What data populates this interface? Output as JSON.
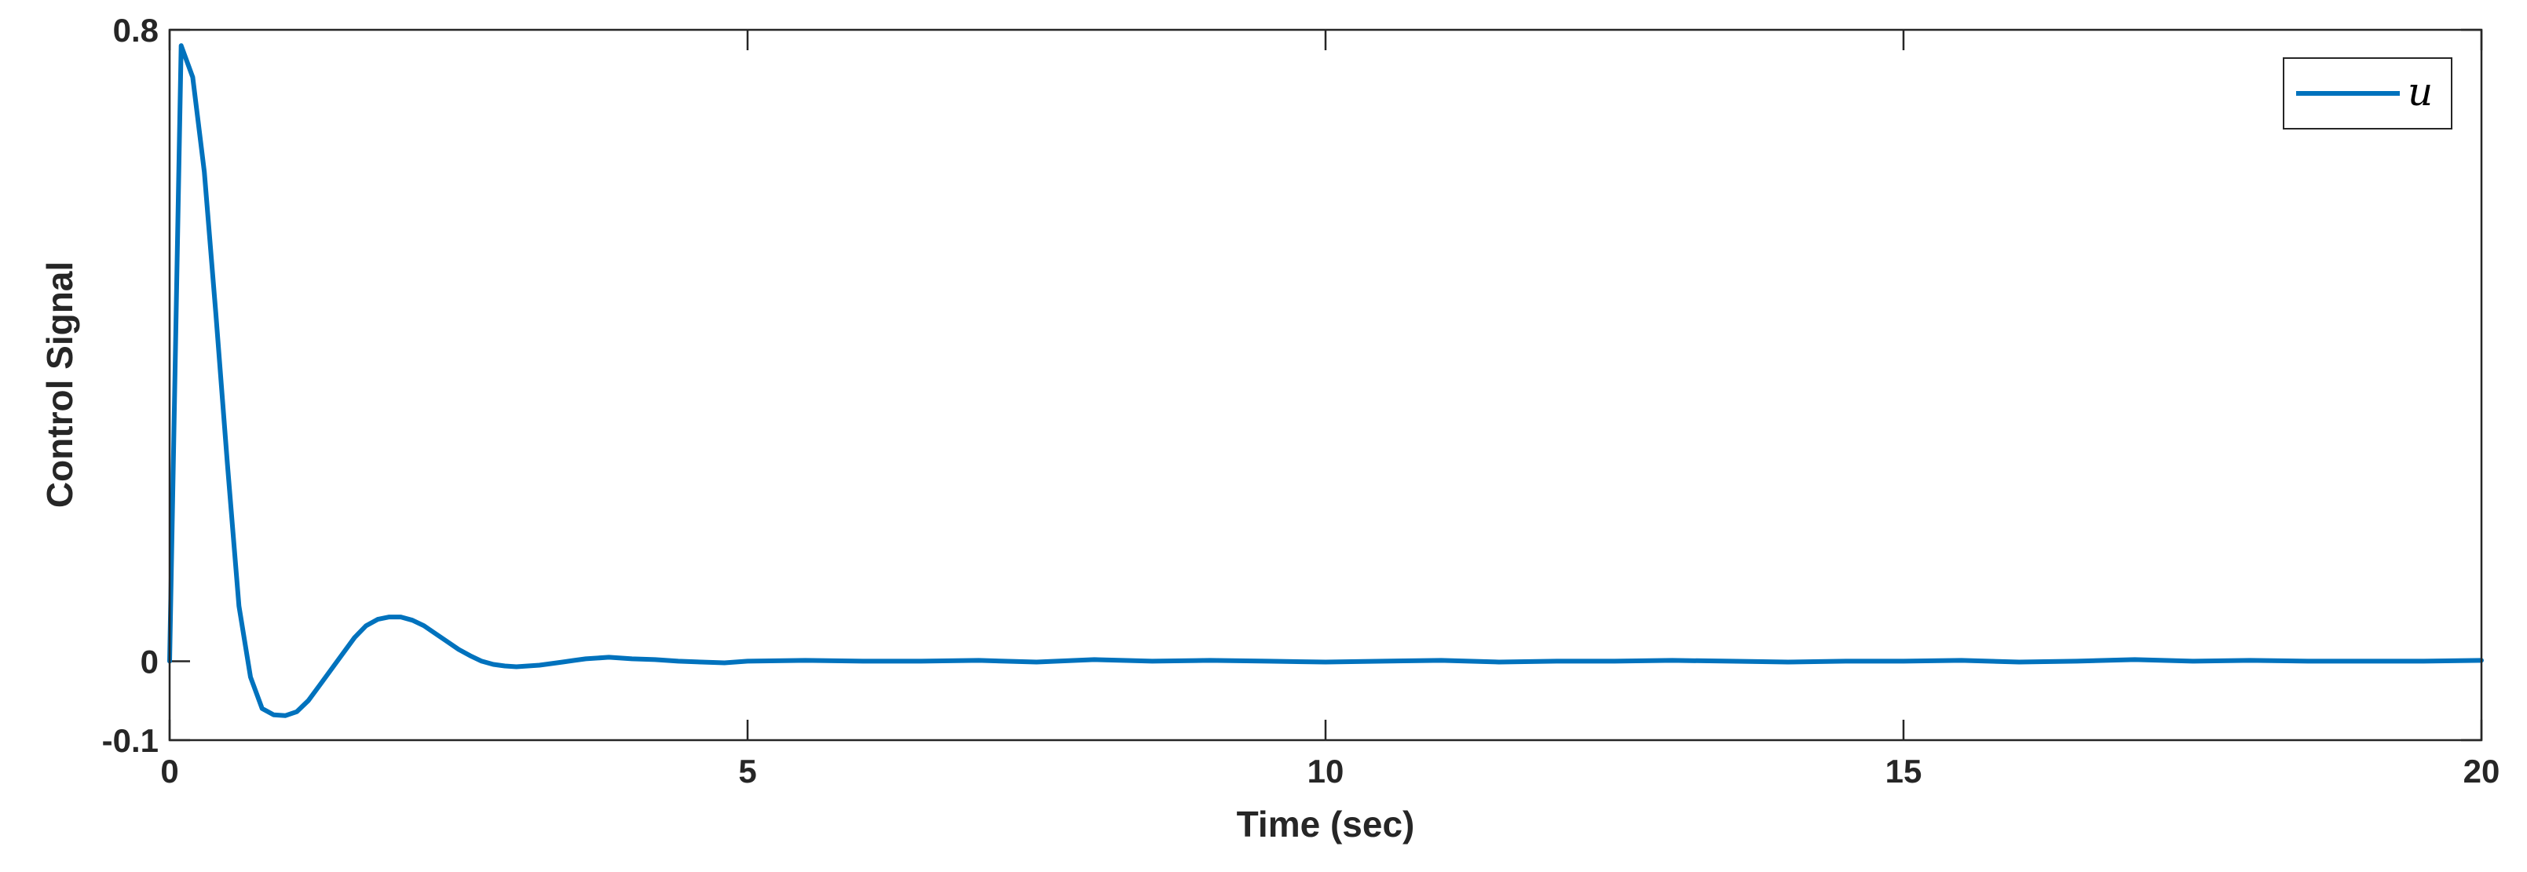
{
  "chart_data": {
    "type": "line",
    "title": "",
    "xlabel": "Time (sec)",
    "ylabel": "Control Signal",
    "xlim": [
      0,
      20
    ],
    "ylim": [
      -0.1,
      0.8
    ],
    "x_ticks": [
      0,
      5,
      10,
      15,
      20
    ],
    "x_tick_labels": [
      "0",
      "5",
      "10",
      "15",
      "20"
    ],
    "y_ticks": [
      -0.1,
      0,
      0.8
    ],
    "y_tick_labels": [
      "-0.1",
      "0",
      "0.8"
    ],
    "grid": false,
    "legend_position": "top-right",
    "series": [
      {
        "name": "u",
        "color": "#0072BD",
        "x": [
          0,
          0.1,
          0.2,
          0.3,
          0.4,
          0.5,
          0.6,
          0.7,
          0.8,
          0.9,
          1.0,
          1.1,
          1.2,
          1.3,
          1.4,
          1.5,
          1.6,
          1.7,
          1.8,
          1.9,
          2.0,
          2.1,
          2.2,
          2.3,
          2.4,
          2.5,
          2.6,
          2.7,
          2.8,
          2.9,
          3.0,
          3.1,
          3.2,
          3.3,
          3.4,
          3.5,
          3.6,
          3.8,
          4.0,
          4.2,
          4.4,
          4.6,
          4.8,
          5.0,
          5.5,
          6.0,
          6.5,
          7.0,
          7.5,
          8.0,
          8.5,
          9.0,
          9.5,
          10.0,
          10.5,
          11.0,
          11.5,
          12.0,
          12.5,
          13.0,
          13.5,
          14.0,
          14.5,
          15.0,
          15.5,
          16.0,
          16.5,
          17.0,
          17.5,
          18.0,
          18.5,
          19.0,
          19.5,
          20.0
        ],
        "y": [
          0.0,
          0.78,
          0.74,
          0.62,
          0.44,
          0.25,
          0.07,
          -0.02,
          -0.06,
          -0.068,
          -0.069,
          -0.064,
          -0.05,
          -0.03,
          -0.01,
          0.01,
          0.03,
          0.045,
          0.053,
          0.056,
          0.056,
          0.052,
          0.045,
          0.035,
          0.025,
          0.015,
          0.007,
          0.0,
          -0.004,
          -0.006,
          -0.007,
          -0.006,
          -0.005,
          -0.003,
          -0.001,
          0.001,
          0.003,
          0.005,
          0.003,
          0.002,
          0.0,
          -0.001,
          -0.002,
          0.0,
          0.001,
          0.0,
          0.0,
          0.001,
          -0.001,
          0.002,
          0.0,
          0.001,
          0.0,
          -0.001,
          0.0,
          0.001,
          -0.001,
          0.0,
          0.0,
          0.001,
          0.0,
          -0.001,
          0.0,
          0.0,
          0.001,
          -0.001,
          0.0,
          0.002,
          0.0,
          0.001,
          0.0,
          0.0,
          0.0,
          0.001
        ]
      }
    ]
  }
}
